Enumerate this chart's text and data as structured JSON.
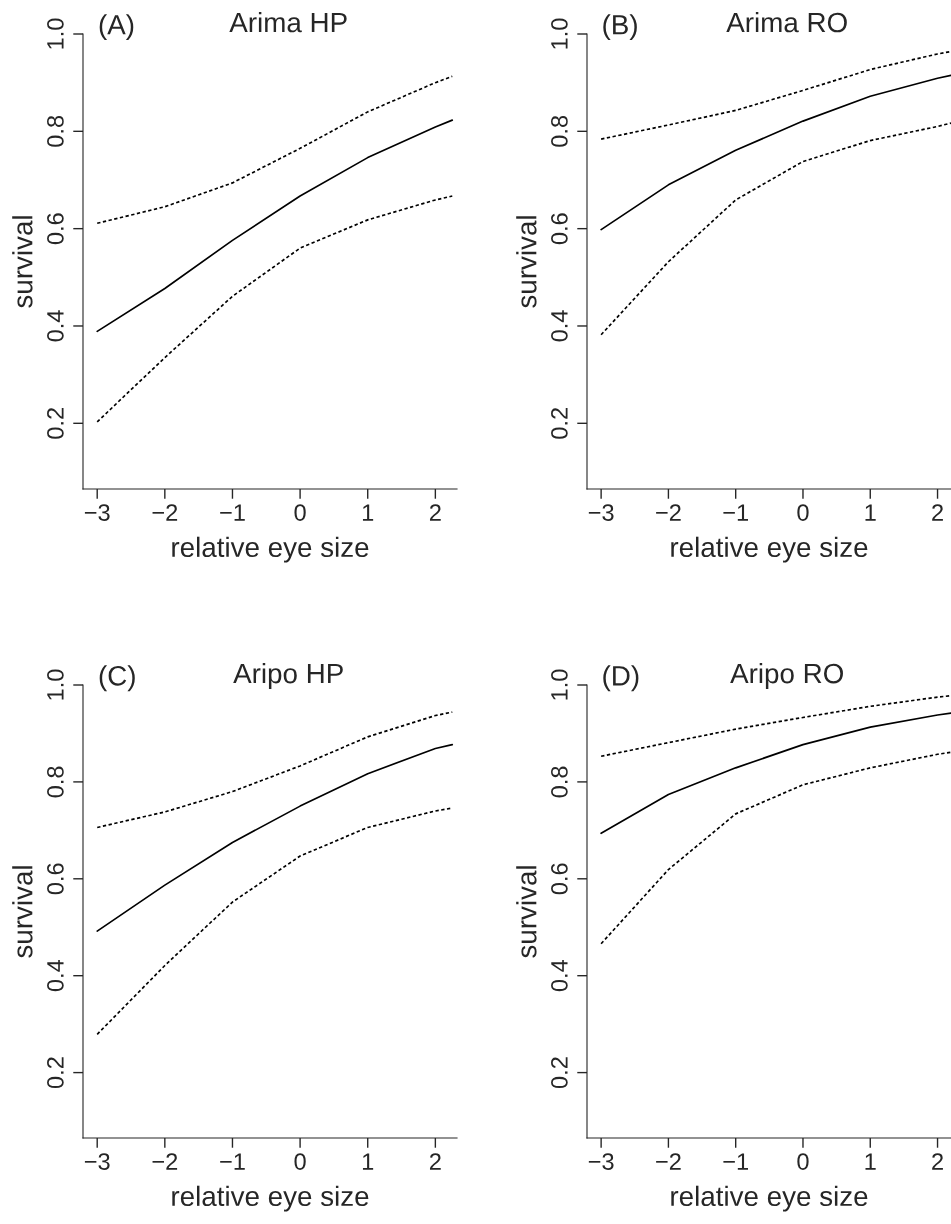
{
  "chart_data": [
    {
      "type": "line",
      "title": "Arima HP",
      "xlabel": "relative eye size",
      "ylabel": "survival",
      "annotations": [
        "(A)"
      ],
      "x": [
        -3,
        -2,
        -1,
        0,
        1,
        2,
        2.25
      ],
      "xlim": [
        -3.21,
        2.32
      ],
      "ylim": [
        0.065,
        1.0
      ],
      "xticks": [
        {
          "value": -3,
          "label": "−3"
        },
        {
          "value": -2,
          "label": "−2"
        },
        {
          "value": -1,
          "label": "−1"
        },
        0,
        1,
        2
      ],
      "yticks": [
        {
          "value": 0.2,
          "label": "0.2"
        },
        {
          "value": 0.4,
          "label": "0.4"
        },
        {
          "value": 0.6,
          "label": "0.6"
        },
        {
          "value": 0.8,
          "label": "0.8"
        },
        {
          "value": 1.0,
          "label": "1.0"
        }
      ],
      "grid": false,
      "series": [
        {
          "color": "#000000",
          "line_style": "solid",
          "values": [
            0.389,
            0.477,
            0.576,
            0.667,
            0.746,
            0.809,
            0.823
          ]
        },
        {
          "color": "#000000",
          "line_style": "dashed",
          "values": [
            0.611,
            0.645,
            0.694,
            0.765,
            0.84,
            0.9,
            0.913
          ]
        },
        {
          "color": "#000000",
          "line_style": "dashed",
          "values": [
            0.203,
            0.335,
            0.461,
            0.56,
            0.618,
            0.659,
            0.667
          ]
        }
      ]
    },
    {
      "type": "line",
      "title": "Arima RO",
      "xlabel": "relative eye size",
      "ylabel": "survival",
      "annotations": [
        "(B)"
      ],
      "x": [
        -3,
        -2,
        -1,
        0,
        1,
        2,
        2.2
      ],
      "xlim": [
        -3.21,
        2.2
      ],
      "ylim": [
        0.065,
        1.0
      ],
      "xticks": [
        {
          "value": -3,
          "label": "−3"
        },
        {
          "value": -2,
          "label": "−2"
        },
        {
          "value": -1,
          "label": "−1"
        },
        0,
        1,
        2
      ],
      "yticks": [
        {
          "value": 0.2,
          "label": "0.2"
        },
        {
          "value": 0.4,
          "label": "0.4"
        },
        {
          "value": 0.6,
          "label": "0.6"
        },
        {
          "value": 0.8,
          "label": "0.8"
        },
        {
          "value": 1.0,
          "label": "1.0"
        }
      ],
      "grid": false,
      "series": [
        {
          "color": "#000000",
          "line_style": "solid",
          "values": [
            0.598,
            0.69,
            0.761,
            0.821,
            0.872,
            0.909,
            0.915
          ]
        },
        {
          "color": "#000000",
          "line_style": "dashed",
          "values": [
            0.784,
            0.813,
            0.843,
            0.884,
            0.927,
            0.959,
            0.964
          ]
        },
        {
          "color": "#000000",
          "line_style": "dashed",
          "values": [
            0.382,
            0.532,
            0.659,
            0.738,
            0.781,
            0.81,
            0.817
          ]
        }
      ]
    },
    {
      "type": "line",
      "title": "Aripo HP",
      "xlabel": "relative eye size",
      "ylabel": "survival",
      "annotations": [
        "(C)"
      ],
      "x": [
        -3,
        -2,
        -1,
        0,
        1,
        2,
        2.25
      ],
      "xlim": [
        -3.21,
        2.32
      ],
      "ylim": [
        0.065,
        1.0
      ],
      "xticks": [
        {
          "value": -3,
          "label": "−3"
        },
        {
          "value": -2,
          "label": "−2"
        },
        {
          "value": -1,
          "label": "−1"
        },
        0,
        1,
        2
      ],
      "yticks": [
        {
          "value": 0.2,
          "label": "0.2"
        },
        {
          "value": 0.4,
          "label": "0.4"
        },
        {
          "value": 0.6,
          "label": "0.6"
        },
        {
          "value": 0.8,
          "label": "0.8"
        },
        {
          "value": 1.0,
          "label": "1.0"
        }
      ],
      "grid": false,
      "series": [
        {
          "color": "#000000",
          "line_style": "solid",
          "values": [
            0.492,
            0.587,
            0.675,
            0.75,
            0.817,
            0.869,
            0.877
          ]
        },
        {
          "color": "#000000",
          "line_style": "dashed",
          "values": [
            0.706,
            0.738,
            0.78,
            0.833,
            0.893,
            0.937,
            0.944
          ]
        },
        {
          "color": "#000000",
          "line_style": "dashed",
          "values": [
            0.279,
            0.421,
            0.552,
            0.647,
            0.706,
            0.74,
            0.746
          ]
        }
      ]
    },
    {
      "type": "line",
      "title": "Aripo RO",
      "xlabel": "relative eye size",
      "ylabel": "survival",
      "annotations": [
        "(D)"
      ],
      "x": [
        -3,
        -2,
        -1,
        0,
        1,
        2,
        2.2
      ],
      "xlim": [
        -3.21,
        2.2
      ],
      "ylim": [
        0.065,
        1.0
      ],
      "xticks": [
        {
          "value": -3,
          "label": "−3"
        },
        {
          "value": -2,
          "label": "−2"
        },
        {
          "value": -1,
          "label": "−1"
        },
        0,
        1,
        2
      ],
      "yticks": [
        {
          "value": 0.2,
          "label": "0.2"
        },
        {
          "value": 0.4,
          "label": "0.4"
        },
        {
          "value": 0.6,
          "label": "0.6"
        },
        {
          "value": 0.8,
          "label": "0.8"
        },
        {
          "value": 1.0,
          "label": "1.0"
        }
      ],
      "grid": false,
      "series": [
        {
          "color": "#000000",
          "line_style": "solid",
          "values": [
            0.694,
            0.774,
            0.829,
            0.877,
            0.913,
            0.938,
            0.942
          ]
        },
        {
          "color": "#000000",
          "line_style": "dashed",
          "values": [
            0.853,
            0.881,
            0.909,
            0.933,
            0.956,
            0.975,
            0.978
          ]
        },
        {
          "color": "#000000",
          "line_style": "dashed",
          "values": [
            0.466,
            0.619,
            0.734,
            0.794,
            0.829,
            0.857,
            0.861
          ]
        }
      ]
    }
  ]
}
